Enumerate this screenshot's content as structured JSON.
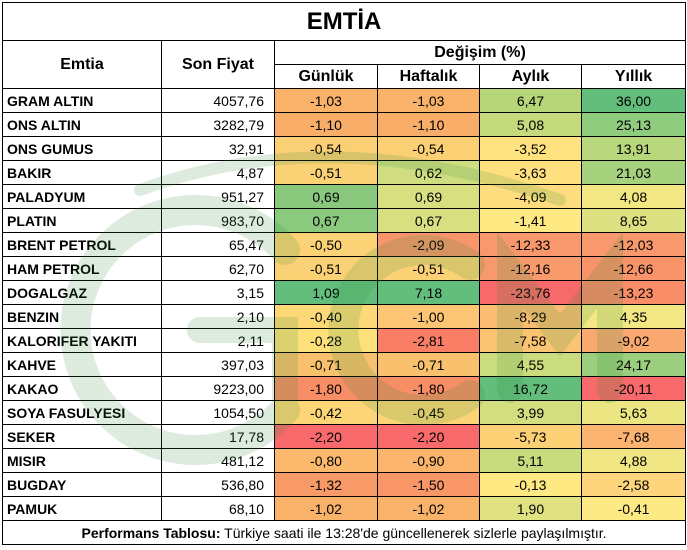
{
  "title": "EMTİA",
  "headers": {
    "commodity": "Emtia",
    "last_price": "Son Fiyat",
    "change_group": "Değişim (%)",
    "daily": "Günlük",
    "weekly": "Haftalık",
    "monthly": "Aylık",
    "yearly": "Yıllık"
  },
  "chart_data": {
    "type": "table",
    "columns": [
      "Günlük",
      "Haftalık",
      "Aylık",
      "Yıllık"
    ],
    "rows": [
      {
        "name": "GRAM ALTIN",
        "price": "4057,76",
        "daily": -1.03,
        "weekly": -1.03,
        "monthly": 6.47,
        "yearly": 36.0
      },
      {
        "name": "ONS ALTIN",
        "price": "3282,79",
        "daily": -1.1,
        "weekly": -1.1,
        "monthly": 5.08,
        "yearly": 25.13
      },
      {
        "name": "ONS GUMUS",
        "price": "32,91",
        "daily": -0.54,
        "weekly": -0.54,
        "monthly": -3.52,
        "yearly": 13.91
      },
      {
        "name": "BAKIR",
        "price": "4,87",
        "daily": -0.51,
        "weekly": 0.62,
        "monthly": -3.63,
        "yearly": 21.03
      },
      {
        "name": "PALADYUM",
        "price": "951,27",
        "daily": 0.69,
        "weekly": 0.69,
        "monthly": -4.09,
        "yearly": 4.08
      },
      {
        "name": "PLATIN",
        "price": "983,70",
        "daily": 0.67,
        "weekly": 0.67,
        "monthly": -1.41,
        "yearly": 8.65
      },
      {
        "name": "BRENT PETROL",
        "price": "65,47",
        "daily": -0.5,
        "weekly": -2.09,
        "monthly": -12.33,
        "yearly": -12.03
      },
      {
        "name": "HAM PETROL",
        "price": "62,70",
        "daily": -0.51,
        "weekly": -0.51,
        "monthly": -12.16,
        "yearly": -12.66
      },
      {
        "name": "DOGALGAZ",
        "price": "3,15",
        "daily": 1.09,
        "weekly": 7.18,
        "monthly": -23.76,
        "yearly": -13.23
      },
      {
        "name": "BENZIN",
        "price": "2,10",
        "daily": -0.4,
        "weekly": -1.0,
        "monthly": -8.29,
        "yearly": 4.35
      },
      {
        "name": "KALORIFER YAKITI",
        "price": "2,11",
        "daily": -0.28,
        "weekly": -2.81,
        "monthly": -7.58,
        "yearly": -9.02
      },
      {
        "name": "KAHVE",
        "price": "397,03",
        "daily": -0.71,
        "weekly": -0.71,
        "monthly": 4.55,
        "yearly": 24.17
      },
      {
        "name": "KAKAO",
        "price": "9223,00",
        "daily": -1.8,
        "weekly": -1.8,
        "monthly": 16.72,
        "yearly": -20.11
      },
      {
        "name": "SOYA FASULYESI",
        "price": "1054,50",
        "daily": -0.42,
        "weekly": -0.45,
        "monthly": 3.99,
        "yearly": 5.63
      },
      {
        "name": "SEKER",
        "price": "17,78",
        "daily": -2.2,
        "weekly": -2.2,
        "monthly": -5.73,
        "yearly": -7.68
      },
      {
        "name": "MISIR",
        "price": "481,12",
        "daily": -0.8,
        "weekly": -0.9,
        "monthly": 5.11,
        "yearly": 4.88
      },
      {
        "name": "BUGDAY",
        "price": "536,80",
        "daily": -1.32,
        "weekly": -1.5,
        "monthly": -0.13,
        "yearly": -2.58
      },
      {
        "name": "PAMUK",
        "price": "68,10",
        "daily": -1.02,
        "weekly": -1.02,
        "monthly": 1.9,
        "yearly": -0.41
      }
    ],
    "cell_colors": [
      [
        "#f8b26a",
        "#f8b26a",
        "#b7d67a",
        "#63be7b"
      ],
      [
        "#f8ad68",
        "#f8ad68",
        "#c4da7c",
        "#90cc7e"
      ],
      [
        "#fbcf74",
        "#fbcf74",
        "#fee27f",
        "#b8d67b"
      ],
      [
        "#fbd175",
        "#cfdd80",
        "#fee07f",
        "#a6d17d"
      ],
      [
        "#8ac97d",
        "#d7df81",
        "#fedd7e",
        "#f2e783"
      ],
      [
        "#8bca7e",
        "#d8df81",
        "#fee882",
        "#dce081"
      ],
      [
        "#fbd275",
        "#f8956a",
        "#f9986c",
        "#f9986c"
      ],
      [
        "#fbd175",
        "#fbd175",
        "#f99a6d",
        "#f8936a"
      ],
      [
        "#63be7b",
        "#63be7b",
        "#f8696b",
        "#f88d68"
      ],
      [
        "#fcd876",
        "#fcc573",
        "#fbbd72",
        "#f3e783"
      ],
      [
        "#fde07a",
        "#f87e65",
        "#fbc473",
        "#f9a870"
      ],
      [
        "#f9c06d",
        "#f9c06d",
        "#cbdc7e",
        "#9bce7e"
      ],
      [
        "#f88e65",
        "#f88e65",
        "#63be7b",
        "#f8696b"
      ],
      [
        "#fcd676",
        "#fcd476",
        "#d3de80",
        "#ebe582"
      ],
      [
        "#f8696b",
        "#f8696b",
        "#fcd075",
        "#fbb471"
      ],
      [
        "#fab96c",
        "#fab46c",
        "#c8db7e",
        "#f0e683"
      ],
      [
        "#f89a67",
        "#f89667",
        "#fee983",
        "#fed57c"
      ],
      [
        "#f8b26a",
        "#f8b26a",
        "#e0e282",
        "#feea84"
      ]
    ]
  },
  "footer": {
    "label": "Performans Tablosu:",
    "text": " Türkiye saati ile 13:28'de güncellenerek sizlerle paylaşılmıştır."
  },
  "watermark": {
    "icon": "gcm-logo-watermark",
    "color": "#2e8b3a"
  }
}
